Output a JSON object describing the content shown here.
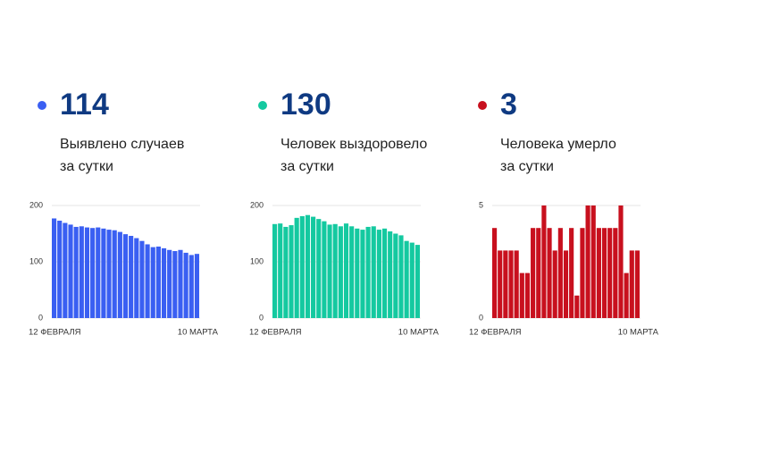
{
  "chart_data": [
    {
      "type": "bar",
      "headline": 114,
      "caption": [
        "Выявлено случаев",
        "за сутки"
      ],
      "color": "#3a5ff2",
      "categories": [
        "12 ФЕВРАЛЯ",
        null,
        null,
        null,
        null,
        null,
        null,
        null,
        null,
        null,
        null,
        null,
        null,
        null,
        null,
        null,
        null,
        null,
        null,
        null,
        null,
        null,
        null,
        null,
        null,
        null,
        "10 МАРТА"
      ],
      "values": [
        177,
        173,
        169,
        166,
        162,
        163,
        161,
        160,
        161,
        159,
        157,
        156,
        153,
        149,
        146,
        142,
        137,
        131,
        126,
        127,
        124,
        121,
        119,
        121,
        116,
        112,
        114
      ],
      "ylim": [
        0,
        200
      ],
      "yticks": [
        0,
        100,
        200
      ],
      "grid": true
    },
    {
      "type": "bar",
      "headline": 130,
      "caption": [
        "Человек выздоровело",
        "за сутки"
      ],
      "color": "#14c9a0",
      "categories": [
        "12 ФЕВРАЛЯ",
        null,
        null,
        null,
        null,
        null,
        null,
        null,
        null,
        null,
        null,
        null,
        null,
        null,
        null,
        null,
        null,
        null,
        null,
        null,
        null,
        null,
        null,
        null,
        null,
        null,
        "10 МАРТА"
      ],
      "values": [
        167,
        168,
        162,
        165,
        178,
        181,
        183,
        180,
        176,
        172,
        166,
        167,
        163,
        168,
        163,
        159,
        157,
        162,
        163,
        157,
        159,
        154,
        150,
        147,
        137,
        134,
        130
      ],
      "ylim": [
        0,
        200
      ],
      "yticks": [
        0,
        100,
        200
      ],
      "grid": true
    },
    {
      "type": "bar",
      "headline": 3,
      "caption": [
        "Человека умерло",
        "за сутки"
      ],
      "color": "#c8101e",
      "categories": [
        "12 ФЕВРАЛЯ",
        null,
        null,
        null,
        null,
        null,
        null,
        null,
        null,
        null,
        null,
        null,
        null,
        null,
        null,
        null,
        null,
        null,
        null,
        null,
        null,
        null,
        null,
        null,
        null,
        null,
        "10 МАРТА"
      ],
      "values": [
        4,
        3,
        3,
        3,
        3,
        2,
        2,
        4,
        4,
        5,
        4,
        3,
        4,
        3,
        4,
        1,
        4,
        5,
        5,
        4,
        4,
        4,
        4,
        5,
        2,
        3,
        3
      ],
      "ylim": [
        0,
        5
      ],
      "yticks": [
        0,
        5
      ],
      "grid": true
    }
  ]
}
